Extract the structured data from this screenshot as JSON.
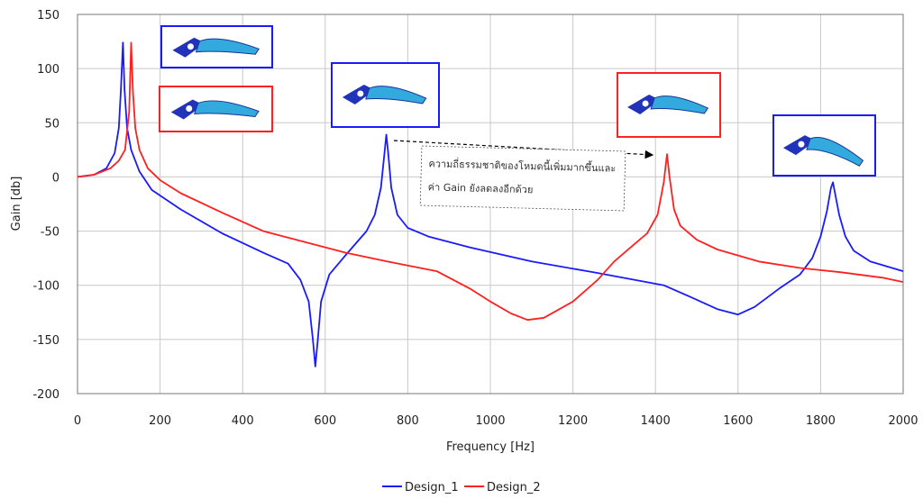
{
  "chart_data": {
    "type": "line",
    "title": "",
    "xlabel": "Frequency [Hz]",
    "ylabel": "Gain [db]",
    "xlim": [
      0,
      2000
    ],
    "ylim": [
      -200,
      150
    ],
    "x_ticks": [
      "0",
      "200",
      "400",
      "600",
      "800",
      "1000",
      "1200",
      "1400",
      "1600",
      "1800",
      "2000"
    ],
    "y_ticks": [
      "150",
      "100",
      "50",
      "0",
      "-50",
      "-100",
      "-150",
      "-200"
    ],
    "grid": true,
    "legend_position": "bottom",
    "series": [
      {
        "name": "Design_1",
        "color": "#1a1aff",
        "points": [
          [
            0,
            0
          ],
          [
            40,
            2
          ],
          [
            70,
            8
          ],
          [
            90,
            22
          ],
          [
            100,
            45
          ],
          [
            105,
            80
          ],
          [
            110,
            124
          ],
          [
            114,
            80
          ],
          [
            120,
            45
          ],
          [
            130,
            25
          ],
          [
            150,
            5
          ],
          [
            180,
            -12
          ],
          [
            250,
            -30
          ],
          [
            350,
            -52
          ],
          [
            450,
            -70
          ],
          [
            510,
            -80
          ],
          [
            540,
            -95
          ],
          [
            560,
            -115
          ],
          [
            570,
            -150
          ],
          [
            576,
            -175
          ],
          [
            582,
            -150
          ],
          [
            590,
            -115
          ],
          [
            610,
            -90
          ],
          [
            650,
            -72
          ],
          [
            700,
            -50
          ],
          [
            720,
            -35
          ],
          [
            735,
            -10
          ],
          [
            743,
            20
          ],
          [
            748,
            39
          ],
          [
            753,
            20
          ],
          [
            760,
            -10
          ],
          [
            775,
            -35
          ],
          [
            800,
            -47
          ],
          [
            850,
            -55
          ],
          [
            950,
            -65
          ],
          [
            1100,
            -78
          ],
          [
            1250,
            -88
          ],
          [
            1350,
            -95
          ],
          [
            1420,
            -100
          ],
          [
            1480,
            -110
          ],
          [
            1550,
            -122
          ],
          [
            1600,
            -127
          ],
          [
            1640,
            -120
          ],
          [
            1700,
            -103
          ],
          [
            1750,
            -90
          ],
          [
            1780,
            -75
          ],
          [
            1800,
            -55
          ],
          [
            1815,
            -32
          ],
          [
            1825,
            -10
          ],
          [
            1830,
            -5
          ],
          [
            1835,
            -15
          ],
          [
            1845,
            -35
          ],
          [
            1860,
            -55
          ],
          [
            1880,
            -68
          ],
          [
            1920,
            -78
          ],
          [
            2000,
            -87
          ]
        ]
      },
      {
        "name": "Design_2",
        "color": "#ff2020",
        "points": [
          [
            0,
            0
          ],
          [
            40,
            2
          ],
          [
            80,
            8
          ],
          [
            100,
            15
          ],
          [
            115,
            25
          ],
          [
            125,
            60
          ],
          [
            130,
            124
          ],
          [
            134,
            80
          ],
          [
            140,
            45
          ],
          [
            150,
            25
          ],
          [
            170,
            8
          ],
          [
            200,
            -3
          ],
          [
            250,
            -15
          ],
          [
            350,
            -33
          ],
          [
            450,
            -50
          ],
          [
            550,
            -60
          ],
          [
            650,
            -70
          ],
          [
            750,
            -78
          ],
          [
            870,
            -87
          ],
          [
            950,
            -103
          ],
          [
            1000,
            -115
          ],
          [
            1050,
            -126
          ],
          [
            1090,
            -132
          ],
          [
            1130,
            -130
          ],
          [
            1200,
            -115
          ],
          [
            1260,
            -95
          ],
          [
            1300,
            -78
          ],
          [
            1340,
            -65
          ],
          [
            1380,
            -52
          ],
          [
            1405,
            -35
          ],
          [
            1420,
            -5
          ],
          [
            1428,
            21
          ],
          [
            1434,
            0
          ],
          [
            1445,
            -30
          ],
          [
            1460,
            -45
          ],
          [
            1500,
            -58
          ],
          [
            1550,
            -67
          ],
          [
            1650,
            -78
          ],
          [
            1750,
            -84
          ],
          [
            1850,
            -88
          ],
          [
            1950,
            -93
          ],
          [
            2000,
            -97
          ]
        ]
      }
    ],
    "annotation": {
      "line1": "ความถี่ธรรมชาติของโหมดนี้เพิ่มมากขึ้นและ",
      "line2": "ค่า Gain ยังลดลงอีกด้วย"
    },
    "mode_shape_boxes": [
      {
        "series": "Design_1",
        "border": "#1a1aff"
      },
      {
        "series": "Design_2",
        "border": "#ff2020"
      },
      {
        "series": "Design_1",
        "border": "#1a1aff"
      },
      {
        "series": "Design_2",
        "border": "#ff2020"
      },
      {
        "series": "Design_1",
        "border": "#1a1aff"
      }
    ]
  }
}
